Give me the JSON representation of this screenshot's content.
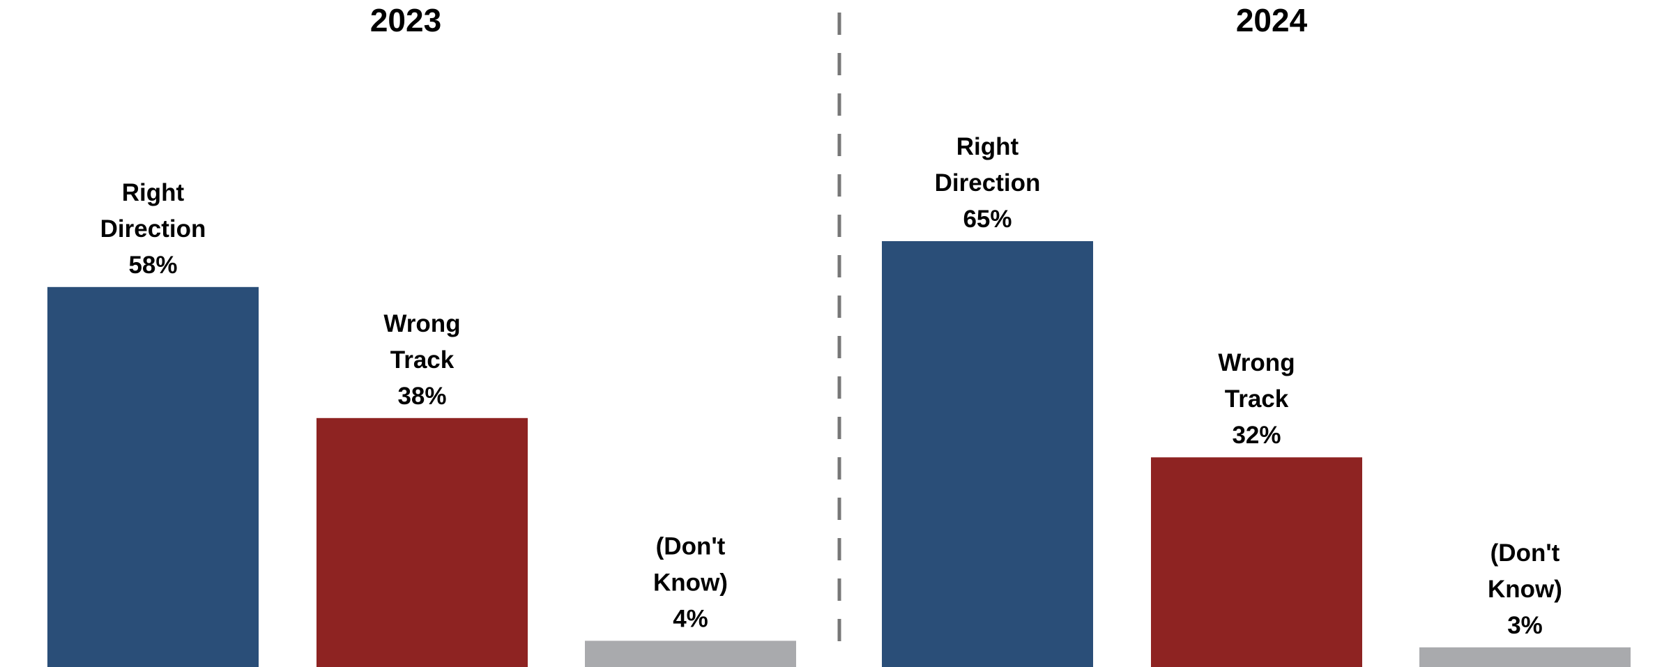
{
  "chart_data": [
    {
      "type": "bar",
      "title": "2023",
      "categories": [
        "Right Direction",
        "Wrong Track",
        "(Don't Know)"
      ],
      "label_lines": [
        [
          "Right",
          "Direction"
        ],
        [
          "Wrong",
          "Track"
        ],
        [
          "(Don't",
          "Know)"
        ]
      ],
      "values": [
        58,
        38,
        4
      ],
      "value_labels": [
        "58%",
        "38%",
        "4%"
      ],
      "colors": [
        "#2a4e78",
        "#8e2322",
        "#a9aaad"
      ],
      "ylim": [
        0,
        100
      ],
      "grid": false,
      "legend": "none"
    },
    {
      "type": "bar",
      "title": "2024",
      "categories": [
        "Right Direction",
        "Wrong Track",
        "(Don't Know)"
      ],
      "label_lines": [
        [
          "Right",
          "Direction"
        ],
        [
          "Wrong",
          "Track"
        ],
        [
          "(Don't",
          "Know)"
        ]
      ],
      "values": [
        65,
        32,
        3
      ],
      "value_labels": [
        "65%",
        "32%",
        "3%"
      ],
      "colors": [
        "#2a4e78",
        "#8e2322",
        "#a9aaad"
      ],
      "ylim": [
        0,
        100
      ],
      "grid": false,
      "legend": "none"
    }
  ]
}
